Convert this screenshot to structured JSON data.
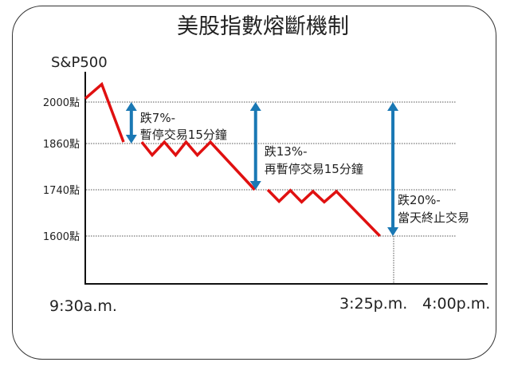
{
  "chart_data": {
    "type": "line",
    "title": "美股指數熔斷機制",
    "ylabel": "S&P500",
    "y_ticks": [
      {
        "value": 2000,
        "label": "2000點"
      },
      {
        "value": 1860,
        "label": "1860點"
      },
      {
        "value": 1740,
        "label": "1740點"
      },
      {
        "value": 1600,
        "label": "1600點"
      }
    ],
    "x_labels": {
      "open": "9:30a.m.",
      "halt": "3:25p.m.",
      "close": "4:00p.m."
    },
    "x_unit": "minutes after open",
    "grid": "dotted horizontal at ticks",
    "segments": [
      [
        [
          0,
          2012
        ],
        [
          19,
          2060
        ],
        [
          44,
          1865
        ]
      ],
      [
        [
          65,
          1865
        ],
        [
          77,
          1830
        ],
        [
          91,
          1865
        ],
        [
          104,
          1830
        ],
        [
          116,
          1865
        ],
        [
          129,
          1830
        ],
        [
          144,
          1865
        ],
        [
          195,
          1740
        ]
      ],
      [
        [
          210,
          1740
        ],
        [
          223,
          1705
        ],
        [
          236,
          1738
        ],
        [
          249,
          1703
        ],
        [
          262,
          1735
        ],
        [
          275,
          1703
        ],
        [
          289,
          1735
        ],
        [
          339,
          1600
        ]
      ]
    ],
    "annotations": [
      {
        "from": 2000,
        "to": 1860,
        "x": 53,
        "line1": "跌7%-",
        "line2": "暫停交易15分鐘"
      },
      {
        "from": 2000,
        "to": 1740,
        "x": 196,
        "line1": "跌13%-",
        "line2": "再暫停交易15分鐘"
      },
      {
        "from": 2000,
        "to": 1600,
        "x": 354,
        "line1": "跌20%-",
        "line2": "當天終止交易"
      }
    ],
    "colors": {
      "title": "#2b2bb8",
      "line": "#e01010",
      "arrow": "#1a78b4"
    }
  }
}
